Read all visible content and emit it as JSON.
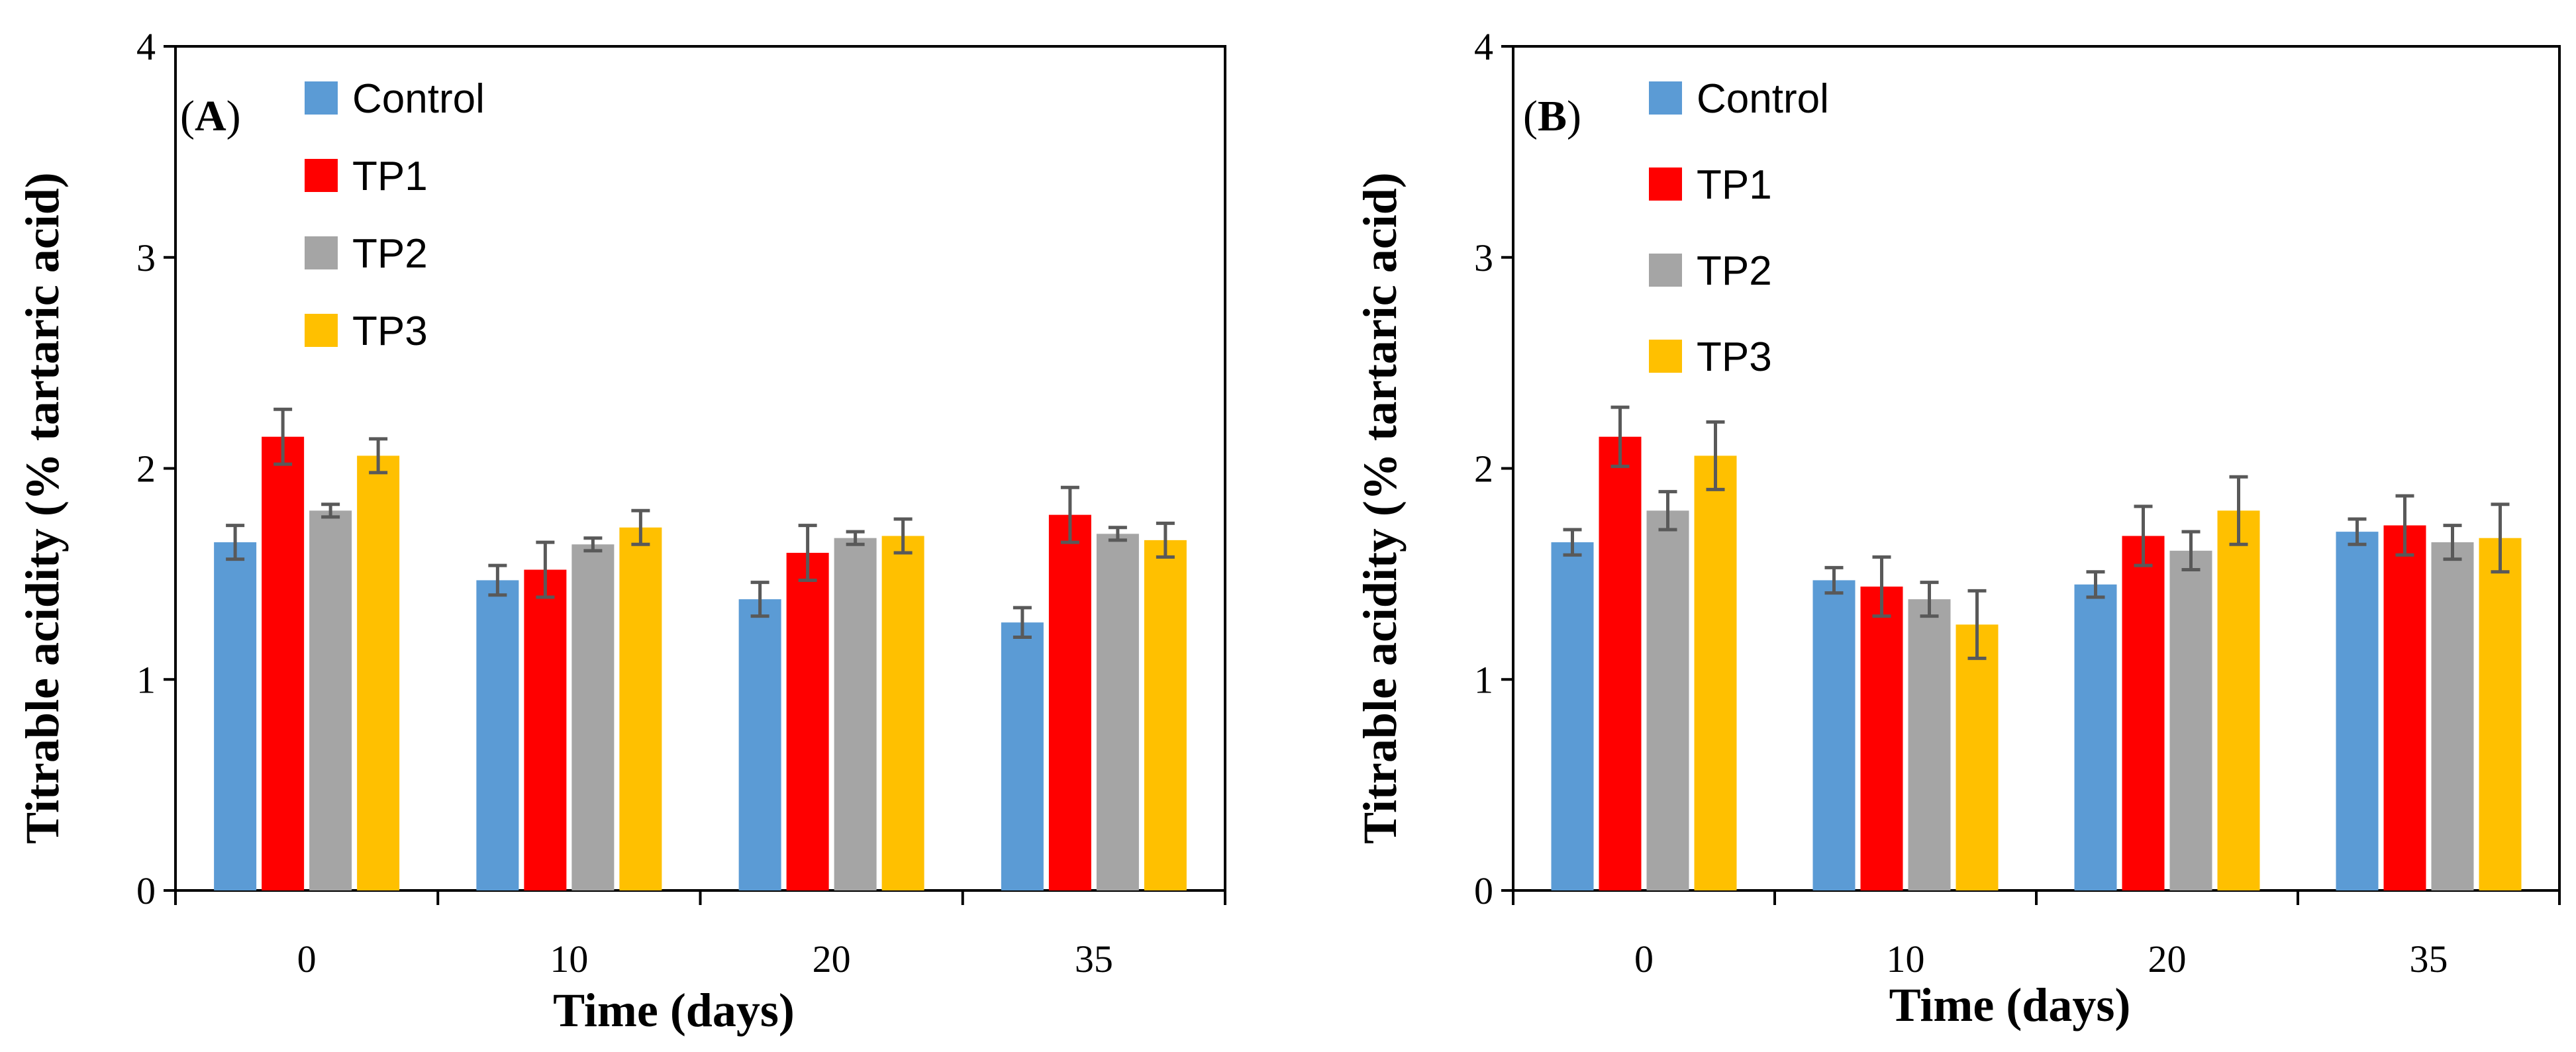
{
  "chart_data": [
    {
      "type": "bar",
      "panel_label": "A",
      "categories": [
        "0",
        "10",
        "20",
        "35"
      ],
      "xlabel": "Time (days)",
      "ylabel": "Titrable acidity  (% tartaric acid)",
      "ylim": [
        0,
        4
      ],
      "yticks": [
        "0",
        "1",
        "2",
        "3",
        "4"
      ],
      "grid": false,
      "legend_position": "top-left",
      "series": [
        {
          "name": "Control",
          "color": "#5B9BD5",
          "values": [
            1.65,
            1.47,
            1.38,
            1.27
          ],
          "errors": [
            0.08,
            0.07,
            0.08,
            0.07
          ]
        },
        {
          "name": "TP1",
          "color": "#FF0000",
          "values": [
            2.15,
            1.52,
            1.6,
            1.78
          ],
          "errors": [
            0.13,
            0.13,
            0.13,
            0.13
          ]
        },
        {
          "name": "TP2",
          "color": "#A5A5A5",
          "values": [
            1.8,
            1.64,
            1.67,
            1.69
          ],
          "errors": [
            0.03,
            0.03,
            0.03,
            0.03
          ]
        },
        {
          "name": "TP3",
          "color": "#FFC000",
          "values": [
            2.06,
            1.72,
            1.68,
            1.66
          ],
          "errors": [
            0.08,
            0.08,
            0.08,
            0.08
          ]
        }
      ]
    },
    {
      "type": "bar",
      "panel_label": "B",
      "categories": [
        "0",
        "10",
        "20",
        "35"
      ],
      "xlabel": "Time (days)",
      "ylabel": "Titrable acidity (% tartaric acid)",
      "ylim": [
        0,
        4
      ],
      "yticks": [
        "0",
        "1",
        "2",
        "3",
        "4"
      ],
      "grid": false,
      "legend_position": "top-left",
      "series": [
        {
          "name": "Control",
          "color": "#5B9BD5",
          "values": [
            1.65,
            1.47,
            1.45,
            1.7
          ],
          "errors": [
            0.06,
            0.06,
            0.06,
            0.06
          ]
        },
        {
          "name": "TP1",
          "color": "#FF0000",
          "values": [
            2.15,
            1.44,
            1.68,
            1.73
          ],
          "errors": [
            0.14,
            0.14,
            0.14,
            0.14
          ]
        },
        {
          "name": "TP2",
          "color": "#A5A5A5",
          "values": [
            1.8,
            1.38,
            1.61,
            1.65
          ],
          "errors": [
            0.09,
            0.08,
            0.09,
            0.08
          ]
        },
        {
          "name": "TP3",
          "color": "#FFC000",
          "values": [
            2.06,
            1.26,
            1.8,
            1.67
          ],
          "errors": [
            0.16,
            0.16,
            0.16,
            0.16
          ]
        }
      ]
    }
  ]
}
